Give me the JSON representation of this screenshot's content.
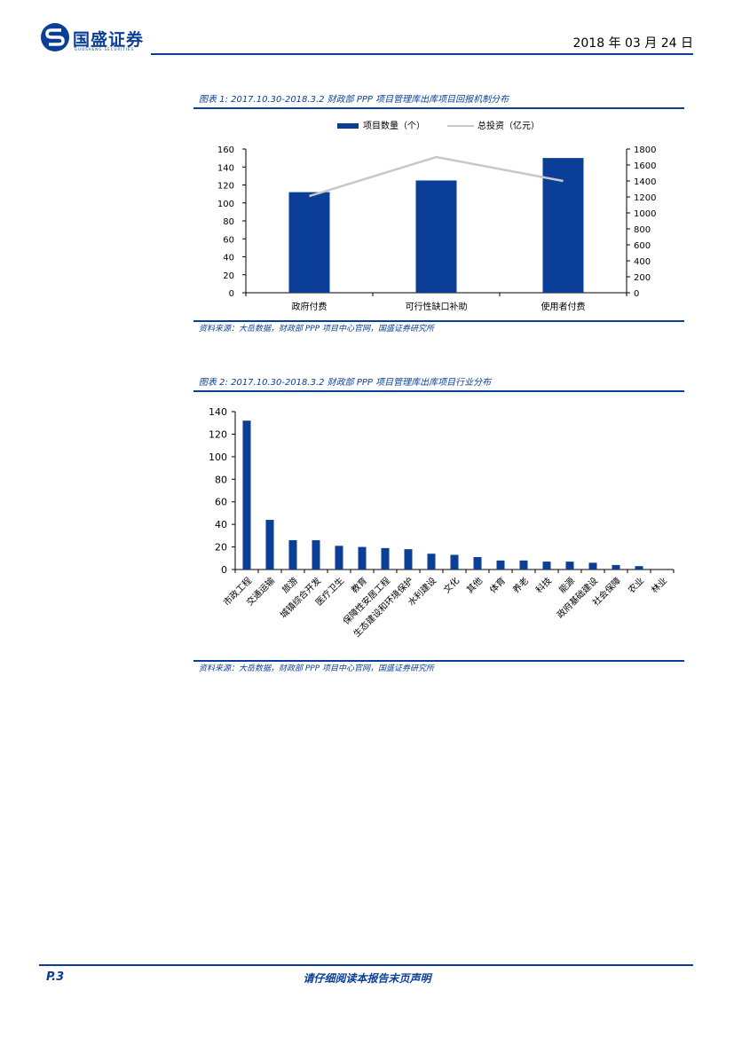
{
  "header": {
    "brand_name": "国盛证券",
    "brand_sub": "GUOSHENG SECURITIES",
    "date": "2018 年 03 月 24 日"
  },
  "figure1": {
    "caption": "图表 1:  2017.10.30-2018.3.2 财政部 PPP 项目管理库出库项目回报机制分布",
    "source": "资料来源：大岳数据，财政部 PPP 项目中心官网，国盛证券研究所",
    "chart_data": {
      "type": "bar",
      "categories": [
        "政府付费",
        "可行性缺口补助",
        "使用者付费"
      ],
      "series": [
        {
          "name": "项目数量（个）",
          "kind": "bar",
          "axis": "left",
          "values": [
            112,
            125,
            150
          ],
          "color": "#0b3f97"
        },
        {
          "name": "总投资（亿元）",
          "kind": "line",
          "axis": "right",
          "values": [
            1210,
            1700,
            1400
          ],
          "color": "#c8c8c8"
        }
      ],
      "ylim_left": [
        0,
        160
      ],
      "yticks_left": [
        "0",
        "20",
        "40",
        "60",
        "80",
        "100",
        "120",
        "140",
        "160"
      ],
      "ylim_right": [
        0,
        1800
      ],
      "yticks_right": [
        "0",
        "200",
        "400",
        "600",
        "800",
        "1000",
        "1200",
        "1400",
        "1600",
        "1800"
      ],
      "legend_position": "top-center",
      "grid": false
    }
  },
  "figure2": {
    "caption": "图表 2:  2017.10.30-2018.3.2 财政部 PPP 项目管理库出库项目行业分布",
    "source": "资料来源：大岳数据，财政部 PPP 项目中心官网，国盛证券研究所",
    "chart_data": {
      "type": "bar",
      "categories": [
        "市政工程",
        "交通运输",
        "旅游",
        "城镇综合开发",
        "医疗卫生",
        "教育",
        "保障性安居工程",
        "生态建设和环境保护",
        "水利建设",
        "文化",
        "其他",
        "体育",
        "养老",
        "科技",
        "能源",
        "政府基础建设",
        "社会保障",
        "农业",
        "林业"
      ],
      "values": [
        132,
        44,
        26,
        26,
        21,
        20,
        19,
        18,
        14,
        13,
        11,
        8,
        8,
        7,
        7,
        6,
        4,
        3,
        0
      ],
      "ylim": [
        0,
        140
      ],
      "yticks": [
        "0",
        "20",
        "40",
        "60",
        "80",
        "100",
        "120",
        "140"
      ],
      "bar_color": "#0b3f97",
      "grid": false
    }
  },
  "footer": {
    "page": "P.3",
    "note": "请仔细阅读本报告末页声明"
  }
}
